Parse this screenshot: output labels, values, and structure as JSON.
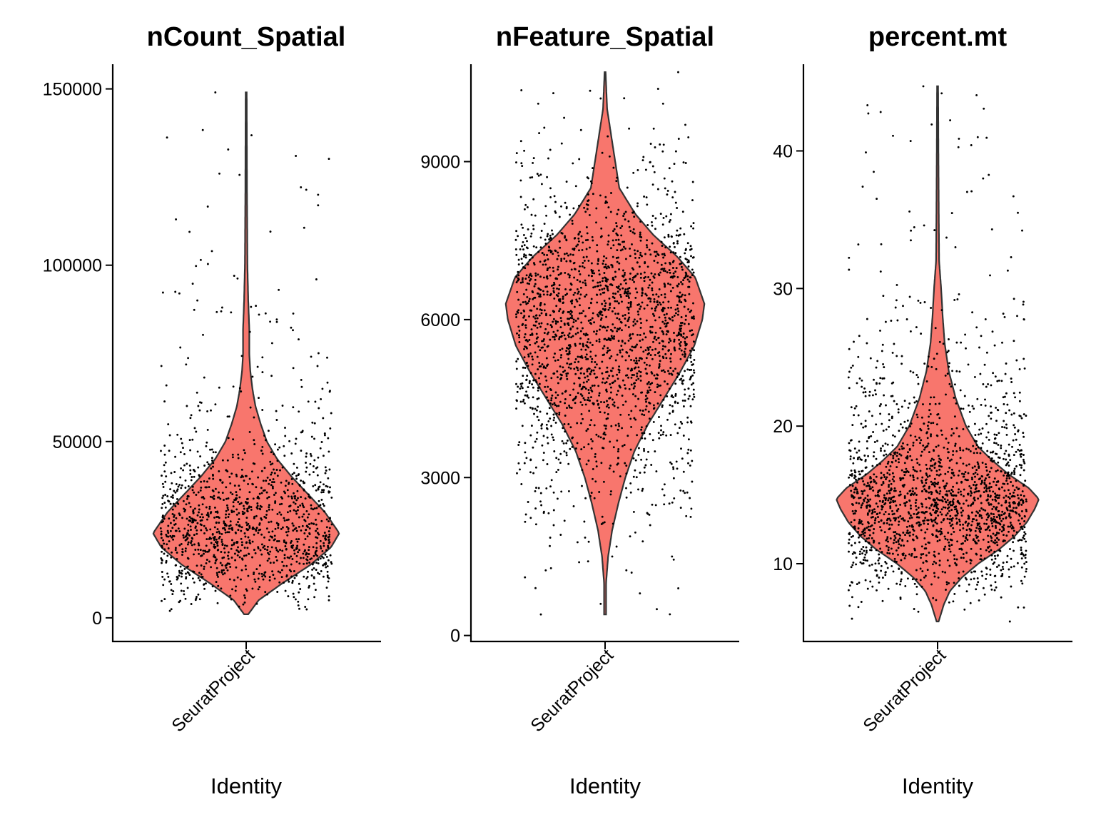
{
  "chart_data": [
    {
      "type": "violin",
      "title": "nCount_Spatial",
      "xlabel": "Identity",
      "ylabel": "",
      "categories": [
        "SeuratProject"
      ],
      "ylim": [
        -6500,
        157000
      ],
      "yticks": [
        0,
        50000,
        100000,
        150000
      ],
      "yticklabels": [
        "0",
        "50000",
        "100000",
        "150000"
      ],
      "fill_color": "#F8766D",
      "series": [
        {
          "category": "SeuratProject",
          "min": 1000,
          "max": 149000,
          "mode": 24000,
          "n_points": 1300,
          "density_profile": [
            [
              1000,
              0.02
            ],
            [
              5000,
              0.12
            ],
            [
              10000,
              0.36
            ],
            [
              15000,
              0.62
            ],
            [
              20000,
              0.82
            ],
            [
              24000,
              0.9
            ],
            [
              30000,
              0.76
            ],
            [
              35000,
              0.6
            ],
            [
              40000,
              0.44
            ],
            [
              45000,
              0.3
            ],
            [
              50000,
              0.2
            ],
            [
              55000,
              0.14
            ],
            [
              60000,
              0.09
            ],
            [
              65000,
              0.06
            ],
            [
              70000,
              0.04
            ],
            [
              75000,
              0.03
            ],
            [
              82000,
              0.03
            ],
            [
              90000,
              0.02
            ],
            [
              100000,
              0.012
            ],
            [
              120000,
              0.008
            ],
            [
              149000,
              0.005
            ]
          ],
          "outlier_points": [
            [
              113000,
              -0.82
            ],
            [
              149000,
              -0.36
            ],
            [
              104000,
              -0.4
            ],
            [
              131000,
              0.58
            ],
            [
              120000,
              0.84
            ],
            [
              117000,
              0.84
            ],
            [
              97000,
              -0.14
            ],
            [
              96000,
              0.82
            ],
            [
              93000,
              0.38
            ],
            [
              92000,
              -0.78
            ],
            [
              90000,
              -0.57
            ],
            [
              88000,
              -0.28
            ],
            [
              86000,
              0.15
            ],
            [
              84000,
              0.28
            ]
          ]
        }
      ]
    },
    {
      "type": "violin",
      "title": "nFeature_Spatial",
      "xlabel": "Identity",
      "ylabel": "",
      "categories": [
        "SeuratProject"
      ],
      "ylim": [
        -100,
        10850
      ],
      "yticks": [
        0,
        3000,
        6000,
        9000
      ],
      "yticklabels": [
        "0",
        "3000",
        "6000",
        "9000"
      ],
      "fill_color": "#F8766D",
      "series": [
        {
          "category": "SeuratProject",
          "min": 400,
          "max": 10700,
          "mode": 6200,
          "n_points": 2100,
          "density_profile": [
            [
              400,
              0.01
            ],
            [
              1000,
              0.01
            ],
            [
              1500,
              0.03
            ],
            [
              2000,
              0.07
            ],
            [
              2500,
              0.13
            ],
            [
              3000,
              0.2
            ],
            [
              3500,
              0.29
            ],
            [
              4000,
              0.42
            ],
            [
              4500,
              0.58
            ],
            [
              5000,
              0.74
            ],
            [
              5500,
              0.88
            ],
            [
              6000,
              0.96
            ],
            [
              6300,
              0.98
            ],
            [
              6800,
              0.89
            ],
            [
              7200,
              0.71
            ],
            [
              7600,
              0.48
            ],
            [
              8000,
              0.3
            ],
            [
              8500,
              0.14
            ],
            [
              9000,
              0.1
            ],
            [
              9500,
              0.06
            ],
            [
              10000,
              0.02
            ],
            [
              10700,
              0.005
            ]
          ],
          "outlier_points": [
            [
              10700,
              0.82
            ],
            [
              10300,
              -0.58
            ],
            [
              10100,
              -0.75
            ],
            [
              10100,
              0.65
            ],
            [
              10200,
              -0.05
            ],
            [
              9700,
              0.9
            ],
            [
              9600,
              -0.27
            ],
            [
              900,
              -0.78
            ],
            [
              400,
              -0.72
            ],
            [
              500,
              0.58
            ],
            [
              600,
              -0.05
            ],
            [
              800,
              0.39
            ],
            [
              1500,
              0.75
            ],
            [
              1500,
              0.08
            ],
            [
              1700,
              -0.62
            ]
          ]
        }
      ]
    },
    {
      "type": "violin",
      "title": "percent.mt",
      "xlabel": "Identity",
      "ylabel": "",
      "categories": [
        "SeuratProject"
      ],
      "ylim": [
        4.4,
        46.3
      ],
      "yticks": [
        10,
        20,
        30,
        40
      ],
      "yticklabels": [
        "10",
        "20",
        "30",
        "40"
      ],
      "fill_color": "#F8766D",
      "series": [
        {
          "category": "SeuratProject",
          "min": 5.8,
          "max": 44.7,
          "mode": 14.5,
          "n_points": 1900,
          "density_profile": [
            [
              5.8,
              0.01
            ],
            [
              7,
              0.06
            ],
            [
              8,
              0.12
            ],
            [
              9,
              0.24
            ],
            [
              10,
              0.4
            ],
            [
              11,
              0.6
            ],
            [
              12,
              0.76
            ],
            [
              13,
              0.88
            ],
            [
              14,
              0.96
            ],
            [
              14.7,
              1.0
            ],
            [
              15.5,
              0.9
            ],
            [
              16.5,
              0.7
            ],
            [
              17.5,
              0.54
            ],
            [
              18.5,
              0.4
            ],
            [
              20,
              0.28
            ],
            [
              22,
              0.18
            ],
            [
              24,
              0.11
            ],
            [
              26,
              0.07
            ],
            [
              28,
              0.05
            ],
            [
              30,
              0.035
            ],
            [
              32,
              0.015
            ],
            [
              35,
              0.012
            ],
            [
              40,
              0.008
            ],
            [
              44.7,
              0.005
            ]
          ],
          "outlier_points": [
            [
              44.7,
              -0.16
            ],
            [
              41.1,
              -0.5
            ],
            [
              41,
              0.45
            ],
            [
              37.4,
              -0.84
            ],
            [
              38,
              0.51
            ],
            [
              36.7,
              0.85
            ],
            [
              34.3,
              0.61
            ],
            [
              33.7,
              0.1
            ],
            [
              33.5,
              -0.3
            ],
            [
              33,
              0.2
            ],
            [
              6,
              -0.96
            ],
            [
              5.8,
              0.81
            ],
            [
              7.8,
              0.19
            ]
          ]
        }
      ]
    }
  ]
}
